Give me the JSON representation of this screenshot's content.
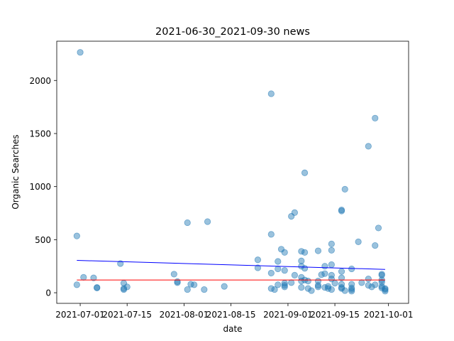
{
  "chart_data": {
    "type": "scatter",
    "title": "2021-06-30_2021-09-30 news",
    "xlabel": "date",
    "ylabel": "Organic Searches",
    "x_axis_type": "date",
    "xlim": [
      "2021-06-24",
      "2021-10-07"
    ],
    "ylim": [
      -100,
      2370
    ],
    "x_ticks": [
      "2021-07-01",
      "2021-07-15",
      "2021-08-01",
      "2021-08-15",
      "2021-09-01",
      "2021-09-15",
      "2021-10-01"
    ],
    "y_ticks": [
      0,
      500,
      1000,
      1500,
      2000
    ],
    "grid": false,
    "legend": "none",
    "colors": {
      "points": "#1f77b4",
      "trend_line": "#0000ff",
      "reference_line": "#ff0000"
    },
    "series": [
      {
        "x": [
          "2021-06-30",
          "2021-06-30",
          "2021-07-01",
          "2021-07-02",
          "2021-07-05",
          "2021-07-06",
          "2021-07-06",
          "2021-07-13",
          "2021-07-14",
          "2021-07-14",
          "2021-07-14",
          "2021-07-15",
          "2021-07-29",
          "2021-07-30",
          "2021-07-30",
          "2021-08-02",
          "2021-08-02",
          "2021-08-03",
          "2021-08-04",
          "2021-08-07",
          "2021-08-08",
          "2021-08-13",
          "2021-08-23",
          "2021-08-23",
          "2021-08-27",
          "2021-08-27",
          "2021-08-27",
          "2021-08-27",
          "2021-08-28",
          "2021-08-29",
          "2021-08-29",
          "2021-08-29",
          "2021-08-30",
          "2021-08-31",
          "2021-08-31",
          "2021-08-31",
          "2021-08-31",
          "2021-08-31",
          "2021-09-02",
          "2021-09-02",
          "2021-09-03",
          "2021-09-03",
          "2021-09-05",
          "2021-09-05",
          "2021-09-05",
          "2021-09-05",
          "2021-09-05",
          "2021-09-05",
          "2021-09-06",
          "2021-09-06",
          "2021-09-06",
          "2021-09-06",
          "2021-09-07",
          "2021-09-07",
          "2021-09-08",
          "2021-09-10",
          "2021-09-10",
          "2021-09-10",
          "2021-09-10",
          "2021-09-11",
          "2021-09-12",
          "2021-09-12",
          "2021-09-12",
          "2021-09-13",
          "2021-09-13",
          "2021-09-14",
          "2021-09-14",
          "2021-09-14",
          "2021-09-14",
          "2021-09-14",
          "2021-09-14",
          "2021-09-15",
          "2021-09-17",
          "2021-09-17",
          "2021-09-17",
          "2021-09-17",
          "2021-09-17",
          "2021-09-17",
          "2021-09-17",
          "2021-09-18",
          "2021-09-18",
          "2021-09-20",
          "2021-09-20",
          "2021-09-20",
          "2021-09-20",
          "2021-09-20",
          "2021-09-22",
          "2021-09-23",
          "2021-09-25",
          "2021-09-25",
          "2021-09-25",
          "2021-09-26",
          "2021-09-27",
          "2021-09-27",
          "2021-09-27",
          "2021-09-28",
          "2021-09-29",
          "2021-09-29",
          "2021-09-29",
          "2021-09-29",
          "2021-09-29",
          "2021-09-29",
          "2021-09-30",
          "2021-09-30",
          "2021-09-30"
        ],
        "y": [
          75,
          535,
          2265,
          145,
          140,
          50,
          45,
          275,
          90,
          30,
          40,
          55,
          175,
          105,
          95,
          30,
          660,
          80,
          75,
          30,
          670,
          60,
          310,
          235,
          1875,
          550,
          185,
          40,
          30,
          295,
          225,
          75,
          410,
          380,
          210,
          90,
          70,
          55,
          720,
          95,
          755,
          165,
          300,
          390,
          250,
          145,
          110,
          50,
          120,
          380,
          230,
          1130,
          110,
          40,
          20,
          395,
          110,
          55,
          70,
          170,
          180,
          250,
          50,
          60,
          40,
          30,
          460,
          400,
          265,
          165,
          130,
          90,
          780,
          770,
          200,
          140,
          80,
          50,
          40,
          975,
          20,
          225,
          80,
          30,
          15,
          45,
          480,
          95,
          70,
          130,
          1380,
          55,
          1645,
          445,
          75,
          610,
          165,
          175,
          120,
          100,
          60,
          45,
          30,
          40,
          15
        ]
      }
    ],
    "trend_line": {
      "x": [
        "2021-06-30",
        "2021-09-30"
      ],
      "y": [
        305,
        220
      ]
    },
    "reference_line": {
      "x": [
        "2021-06-30",
        "2021-09-30"
      ],
      "y": [
        120,
        120
      ]
    }
  }
}
